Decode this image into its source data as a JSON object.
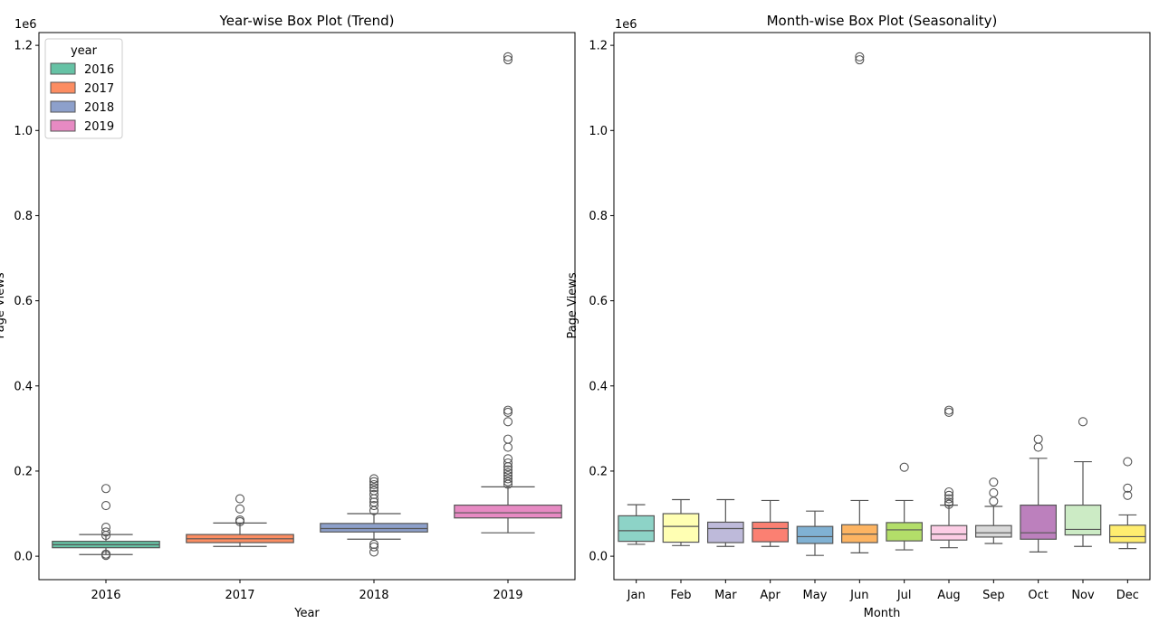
{
  "chart_data": [
    {
      "type": "box",
      "title": "Year-wise Box Plot (Trend)",
      "xlabel": "Year",
      "ylabel": "Page Views",
      "y_multiplier_label": "1e6",
      "ylim": [
        -55000,
        1230000
      ],
      "yticks": [
        0,
        200000,
        400000,
        600000,
        800000,
        1000000,
        1200000
      ],
      "ytick_labels": [
        "0.0",
        "0.2",
        "0.4",
        "0.6",
        "0.8",
        "1.0",
        "1.2"
      ],
      "legend": {
        "title": "year",
        "placement": "top-left",
        "entries": [
          "2016",
          "2017",
          "2018",
          "2019"
        ]
      },
      "categories": [
        "2016",
        "2017",
        "2018",
        "2019"
      ],
      "boxes": [
        {
          "category": "2016",
          "color": "#66c2a5",
          "whislo": 4000,
          "q1": 20000,
          "median": 27000,
          "q3": 35000,
          "whishi": 51000,
          "fliers": [
            159000,
            119000,
            68000,
            57000,
            49000,
            5000,
            2000
          ]
        },
        {
          "category": "2017",
          "color": "#fc8d62",
          "whislo": 23000,
          "q1": 32000,
          "median": 41000,
          "q3": 51000,
          "whishi": 78000,
          "fliers": [
            135000,
            111000,
            85000,
            81000
          ]
        },
        {
          "category": "2018",
          "color": "#8da0cb",
          "whislo": 40000,
          "q1": 57000,
          "median": 65000,
          "q3": 77000,
          "whishi": 100000,
          "fliers": [
            182000,
            175000,
            168000,
            161000,
            154000,
            145000,
            135000,
            127000,
            119000,
            107000,
            28000,
            22000,
            10000
          ]
        },
        {
          "category": "2019",
          "color": "#e78ac3",
          "whislo": 55000,
          "q1": 90000,
          "median": 102000,
          "q3": 120000,
          "whishi": 163000,
          "fliers": [
            1173000,
            1166000,
            343000,
            338000,
            316000,
            275000,
            256000,
            229000,
            219000,
            210000,
            203000,
            196000,
            189000,
            182000,
            175000,
            169000
          ]
        }
      ]
    },
    {
      "type": "box",
      "title": "Month-wise Box Plot (Seasonality)",
      "xlabel": "Month",
      "ylabel": "Page Views",
      "y_multiplier_label": "1e6",
      "ylim": [
        -55000,
        1230000
      ],
      "yticks": [
        0,
        200000,
        400000,
        600000,
        800000,
        1000000,
        1200000
      ],
      "ytick_labels": [
        "0.0",
        "0.2",
        "0.4",
        "0.6",
        "0.8",
        "1.0",
        "1.2"
      ],
      "categories": [
        "Jan",
        "Feb",
        "Mar",
        "Apr",
        "May",
        "Jun",
        "Jul",
        "Aug",
        "Sep",
        "Oct",
        "Nov",
        "Dec"
      ],
      "boxes": [
        {
          "category": "Jan",
          "color": "#8dd3c7",
          "whislo": 28000,
          "q1": 35000,
          "median": 60000,
          "q3": 95000,
          "whishi": 121000,
          "fliers": []
        },
        {
          "category": "Feb",
          "color": "#ffffb3",
          "whislo": 25000,
          "q1": 33000,
          "median": 70000,
          "q3": 100000,
          "whishi": 133000,
          "fliers": []
        },
        {
          "category": "Mar",
          "color": "#bebada",
          "whislo": 23000,
          "q1": 32000,
          "median": 65000,
          "q3": 80000,
          "whishi": 133000,
          "fliers": []
        },
        {
          "category": "Apr",
          "color": "#fb8072",
          "whislo": 23000,
          "q1": 34000,
          "median": 65000,
          "q3": 80000,
          "whishi": 131000,
          "fliers": []
        },
        {
          "category": "May",
          "color": "#80b1d3",
          "whislo": 2000,
          "q1": 30000,
          "median": 46000,
          "q3": 70000,
          "whishi": 106000,
          "fliers": []
        },
        {
          "category": "Jun",
          "color": "#fdb462",
          "whislo": 8000,
          "q1": 32000,
          "median": 52000,
          "q3": 74000,
          "whishi": 131000,
          "fliers": [
            1173000,
            1166000
          ]
        },
        {
          "category": "Jul",
          "color": "#b3de69",
          "whislo": 15000,
          "q1": 36000,
          "median": 62000,
          "q3": 79000,
          "whishi": 131000,
          "fliers": [
            209000
          ]
        },
        {
          "category": "Aug",
          "color": "#fccde5",
          "whislo": 20000,
          "q1": 38000,
          "median": 52000,
          "q3": 72000,
          "whishi": 120000,
          "fliers": [
            343000,
            338000,
            151000,
            143000,
            135000,
            127000,
            122000
          ]
        },
        {
          "category": "Sep",
          "color": "#d9d9d9",
          "whislo": 30000,
          "q1": 45000,
          "median": 55000,
          "q3": 72000,
          "whishi": 117000,
          "fliers": [
            174000,
            149000,
            129000
          ]
        },
        {
          "category": "Oct",
          "color": "#bc80bd",
          "whislo": 10000,
          "q1": 40000,
          "median": 55000,
          "q3": 120000,
          "whishi": 230000,
          "fliers": [
            275000,
            256000
          ]
        },
        {
          "category": "Nov",
          "color": "#ccebc5",
          "whislo": 23000,
          "q1": 50000,
          "median": 63000,
          "q3": 120000,
          "whishi": 222000,
          "fliers": [
            316000
          ]
        },
        {
          "category": "Dec",
          "color": "#ffed6f",
          "whislo": 18000,
          "q1": 32000,
          "median": 46000,
          "q3": 73000,
          "whishi": 97000,
          "fliers": [
            222000,
            160000,
            143000
          ]
        }
      ]
    }
  ]
}
